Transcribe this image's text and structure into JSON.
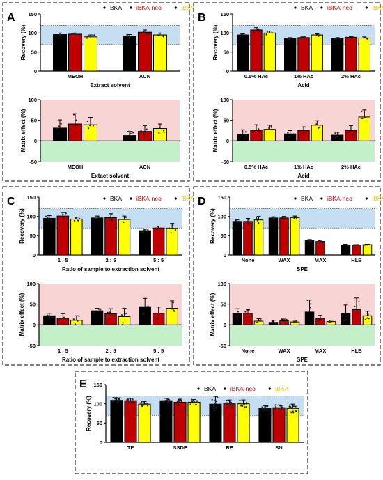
{
  "colors": {
    "BKA": "#000000",
    "iBKA-neo": "#c00000",
    "iBKA": "#ffff00",
    "recovery_band": "#c5def2",
    "matrix_positive": "#f9d4d4",
    "matrix_negative": "#c3f0c8"
  },
  "legend": [
    "BKA",
    "iBKA-neo",
    "iBKA"
  ],
  "panels": [
    {
      "letter": "A",
      "charts": [
        {
          "type": "bar",
          "kind": "recovery",
          "ylabel": "Recovery (%)",
          "xlabel": "Extract solvent",
          "categories": [
            "MEOH",
            "ACN"
          ],
          "ylim": [
            0,
            150
          ],
          "yticks": [
            0,
            50,
            100,
            150
          ],
          "band": [
            70,
            120
          ],
          "series": [
            {
              "name": "BKA",
              "values": [
                96,
                91
              ],
              "errors": [
                4,
                5
              ]
            },
            {
              "name": "iBKA-neo",
              "values": [
                97,
                102
              ],
              "errors": [
                3,
                6
              ]
            },
            {
              "name": "iBKA",
              "values": [
                90,
                95
              ],
              "errors": [
                5,
                5
              ]
            }
          ]
        },
        {
          "type": "bar",
          "kind": "matrix",
          "ylabel": "Matrix effect (%)",
          "xlabel": "Extact solvent",
          "categories": [
            "MEOH",
            "ACN"
          ],
          "ylim": [
            -50,
            100
          ],
          "yticks": [
            -50,
            0,
            50,
            100
          ],
          "series": [
            {
              "name": "BKA",
              "values": [
                31,
                13
              ],
              "errors": [
                20,
                10
              ]
            },
            {
              "name": "iBKA-neo",
              "values": [
                41,
                23
              ],
              "errors": [
                25,
                14
              ]
            },
            {
              "name": "iBKA",
              "values": [
                39,
                30
              ],
              "errors": [
                18,
                11
              ]
            }
          ]
        }
      ]
    },
    {
      "letter": "B",
      "charts": [
        {
          "type": "bar",
          "kind": "recovery",
          "ylabel": "Recovery (%)",
          "xlabel": "Acid",
          "categories": [
            "0.5% HAc",
            "1% HAc",
            "2% HAc"
          ],
          "ylim": [
            0,
            150
          ],
          "yticks": [
            0,
            50,
            100,
            150
          ],
          "band": [
            70,
            120
          ],
          "series": [
            {
              "name": "BKA",
              "values": [
                95,
                86,
                86
              ],
              "errors": [
                3,
                2,
                2
              ]
            },
            {
              "name": "iBKA-neo",
              "values": [
                108,
                88,
                89
              ],
              "errors": [
                6,
                2,
                2
              ]
            },
            {
              "name": "iBKA",
              "values": [
                100,
                95,
                87
              ],
              "errors": [
                5,
                3,
                3
              ]
            }
          ]
        },
        {
          "type": "bar",
          "kind": "matrix",
          "ylabel": "Matrix effect (%)",
          "xlabel": "Acid",
          "categories": [
            "0.5% HAc",
            "1% HAc",
            "2% HAc"
          ],
          "ylim": [
            -50,
            100
          ],
          "yticks": [
            -50,
            0,
            50,
            100
          ],
          "series": [
            {
              "name": "BKA",
              "values": [
                15,
                17,
                14
              ],
              "errors": [
                12,
                8,
                7
              ]
            },
            {
              "name": "iBKA-neo",
              "values": [
                25,
                25,
                25
              ],
              "errors": [
                14,
                9,
                12
              ]
            },
            {
              "name": "iBKA",
              "values": [
                28,
                38,
                58
              ],
              "errors": [
                10,
                11,
                17
              ]
            }
          ]
        }
      ]
    },
    {
      "letter": "C",
      "charts": [
        {
          "type": "bar",
          "kind": "recovery",
          "ylabel": "Recovery (%)",
          "xlabel": "Ratio of sample to extraction solvent",
          "categories": [
            "1 : 5",
            "2 : 5",
            "5 : 5"
          ],
          "ylim": [
            0,
            150
          ],
          "yticks": [
            0,
            50,
            100,
            150
          ],
          "band": [
            70,
            120
          ],
          "series": [
            {
              "name": "BKA",
              "values": [
                95,
                96,
                63
              ],
              "errors": [
                7,
                5,
                4
              ]
            },
            {
              "name": "iBKA-neo",
              "values": [
                101,
                97,
                70
              ],
              "errors": [
                9,
                10,
                5
              ]
            },
            {
              "name": "iBKA",
              "values": [
                93,
                92,
                69
              ],
              "errors": [
                5,
                9,
                13
              ]
            }
          ]
        },
        {
          "type": "bar",
          "kind": "matrix",
          "ylabel": "Matrix effect (%)",
          "xlabel": "Ratio of sample to extraction  solvent",
          "categories": [
            "1 : 5",
            "2 : 5",
            "5 : 5"
          ],
          "ylim": [
            -50,
            100
          ],
          "yticks": [
            -50,
            0,
            50,
            100
          ],
          "series": [
            {
              "name": "BKA",
              "values": [
                22,
                34,
                44
              ],
              "errors": [
                6,
                6,
                20
              ]
            },
            {
              "name": "iBKA-neo",
              "values": [
                16,
                27,
                28
              ],
              "errors": [
                11,
                12,
                15
              ]
            },
            {
              "name": "iBKA",
              "values": [
                11,
                20,
                40
              ],
              "errors": [
                11,
                20,
                18
              ]
            }
          ]
        }
      ]
    },
    {
      "letter": "D",
      "charts": [
        {
          "type": "bar",
          "kind": "recovery",
          "ylabel": "Recovery (%)",
          "xlabel": "SPE",
          "categories": [
            "None",
            "WAX",
            "MAX",
            "HLB"
          ],
          "ylim": [
            0,
            150
          ],
          "yticks": [
            0,
            50,
            100,
            150
          ],
          "band": [
            70,
            120
          ],
          "series": [
            {
              "name": "BKA",
              "values": [
                87,
                96,
                37,
                26
              ],
              "errors": [
                4,
                3,
                3,
                2
              ]
            },
            {
              "name": "iBKA-neo",
              "values": [
                87,
                96,
                35,
                26
              ],
              "errors": [
                8,
                4,
                3,
                1
              ]
            },
            {
              "name": "iBKA",
              "values": [
                91,
                97,
                0,
                27
              ],
              "errors": [
                9,
                4,
                0,
                1
              ]
            }
          ]
        },
        {
          "type": "bar",
          "kind": "matrix",
          "ylabel": "Matrix effect (%)",
          "xlabel": "SPE",
          "categories": [
            "None",
            "WAX",
            "MAX",
            "HLB"
          ],
          "ylim": [
            -50,
            100
          ],
          "yticks": [
            -50,
            0,
            50,
            100
          ],
          "series": [
            {
              "name": "BKA",
              "values": [
                27,
                6,
                31,
                28
              ],
              "errors": [
                12,
                5,
                29,
                20
              ]
            },
            {
              "name": "iBKA-neo",
              "values": [
                28,
                10,
                15,
                37
              ],
              "errors": [
                9,
                4,
                8,
                28
              ]
            },
            {
              "name": "iBKA",
              "values": [
                9,
                7,
                8,
                22
              ],
              "errors": [
                6,
                4,
                3,
                11
              ]
            }
          ]
        }
      ]
    },
    {
      "letter": "E",
      "charts": [
        {
          "type": "bar",
          "kind": "recovery",
          "ylabel": "Recovery (%)",
          "xlabel": "",
          "categories": [
            "TF",
            "SSDF",
            "RF",
            "SN"
          ],
          "ylim": [
            0,
            150
          ],
          "yticks": [
            0,
            50,
            100,
            150
          ],
          "band": [
            70,
            120
          ],
          "series": [
            {
              "name": "BKA",
              "values": [
                109,
                108,
                99,
                89
              ],
              "errors": [
                7,
                6,
                20,
                6
              ]
            },
            {
              "name": "iBKA-neo",
              "values": [
                108,
                104,
                100,
                90
              ],
              "errors": [
                6,
                8,
                10,
                7
              ]
            },
            {
              "name": "iBKA",
              "values": [
                99,
                104,
                100,
                88
              ],
              "errors": [
                7,
                7,
                10,
                11
              ]
            }
          ]
        }
      ]
    }
  ]
}
